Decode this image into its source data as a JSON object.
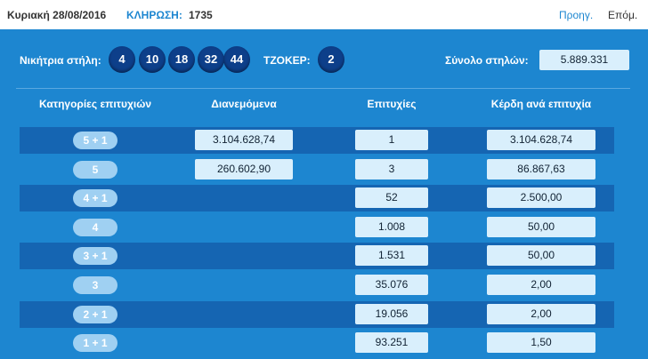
{
  "header": {
    "date": "Κυριακή 28/08/2016",
    "draw_label": "ΚΛΗΡΩΣΗ:",
    "draw_number": "1735",
    "prev": "Προηγ.",
    "next": "Επόμ."
  },
  "winning": {
    "label": "Νικήτρια στήλη:",
    "numbers": [
      "4",
      "10",
      "18",
      "32",
      "44"
    ],
    "joker_label": "ΤΖΟΚΕΡ:",
    "joker": "2",
    "total_label": "Σύνολο στηλών:",
    "total": "5.889.331"
  },
  "table": {
    "headers": [
      "Κατηγορίες επιτυχιών",
      "Διανεμόμενα",
      "Επιτυχίες",
      "Κέρδη ανά επιτυχία"
    ],
    "rows": [
      {
        "category": "5 + 1",
        "distributed": "3.104.628,74",
        "winners": "1",
        "prize": "3.104.628,74"
      },
      {
        "category": "5",
        "distributed": "260.602,90",
        "winners": "3",
        "prize": "86.867,63"
      },
      {
        "category": "4 + 1",
        "winners": "52",
        "prize": "2.500,00"
      },
      {
        "category": "4",
        "winners": "1.008",
        "prize": "50,00"
      },
      {
        "category": "3 + 1",
        "winners": "1.531",
        "prize": "50,00"
      },
      {
        "category": "3",
        "winners": "35.076",
        "prize": "2,00"
      },
      {
        "category": "2 + 1",
        "winners": "19.056",
        "prize": "2,00"
      },
      {
        "category": "1 + 1",
        "winners": "93.251",
        "prize": "1,50"
      }
    ]
  }
}
